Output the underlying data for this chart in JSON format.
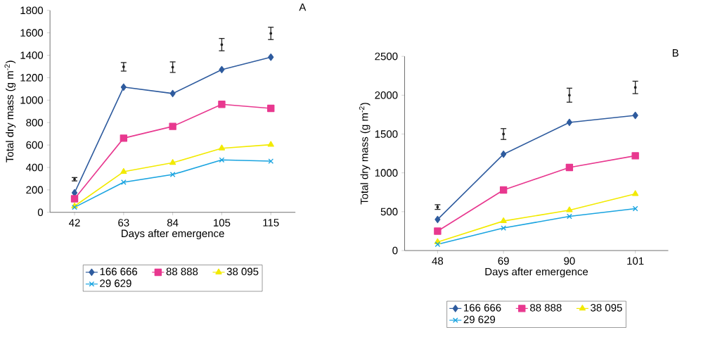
{
  "chart_data": [
    {
      "type": "line",
      "xlabel": "Days after emergence",
      "ylabel": "Total dry mass (g m$^{-2}$)",
      "categories": [
        "42",
        "63",
        "84",
        "105",
        "115"
      ],
      "ylim": [
        0,
        1800
      ],
      "yticks": [
        0,
        200,
        400,
        600,
        800,
        1000,
        1200,
        1400,
        1600,
        1800
      ],
      "legend": "bottom",
      "annotations": [
        "A"
      ],
      "series": [
        {
          "name": "166 666",
          "color": "#2e5b9e",
          "marker": "diamond",
          "values": [
            174,
            1116,
            1059,
            1272,
            1383
          ]
        },
        {
          "name": "88 888",
          "color": "#e8388f",
          "marker": "square",
          "values": [
            121,
            661,
            766,
            963,
            927
          ]
        },
        {
          "name": "38 095",
          "color": "#f2ea00",
          "marker": "triangle",
          "values": [
            55,
            362,
            442,
            571,
            603
          ]
        },
        {
          "name": "29 629",
          "color": "#1aa4e0",
          "marker": "cross",
          "values": [
            45,
            268,
            337,
            467,
            456
          ]
        },
        {
          "type": "scatter",
          "color": "#222222",
          "values": [
            295,
            1297,
            1294,
            1495,
            1595
          ],
          "errors": [
            15,
            38,
            47,
            55,
            55
          ]
        }
      ]
    },
    {
      "type": "line",
      "xlabel": "Days after emergence",
      "ylabel": "Total dry mass (g m$^{-2}$)",
      "categories": [
        "48",
        "69",
        "90",
        "101"
      ],
      "ylim": [
        0,
        2500
      ],
      "yticks": [
        0,
        500,
        1000,
        1500,
        2000,
        2500
      ],
      "legend": "bottom",
      "annotations": [
        "B"
      ],
      "series": [
        {
          "name": "166 666",
          "color": "#2e5b9e",
          "marker": "diamond",
          "values": [
            400,
            1240,
            1650,
            1740
          ]
        },
        {
          "name": "88 888",
          "color": "#e8388f",
          "marker": "square",
          "values": [
            250,
            780,
            1070,
            1220
          ]
        },
        {
          "name": "38 095",
          "color": "#f2ea00",
          "marker": "triangle",
          "values": [
            110,
            380,
            520,
            730
          ]
        },
        {
          "name": "29 629",
          "color": "#1aa4e0",
          "marker": "cross",
          "values": [
            80,
            290,
            440,
            540
          ]
        },
        {
          "type": "scatter",
          "color": "#222222",
          "values": [
            560,
            1500,
            2000,
            2100
          ],
          "errors": [
            30,
            70,
            90,
            80
          ]
        }
      ]
    }
  ]
}
